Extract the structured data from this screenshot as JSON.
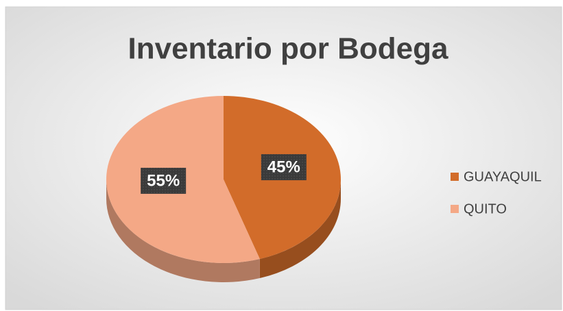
{
  "chart_data": {
    "type": "pie",
    "title": "Inventario por Bodega",
    "categories": [
      "GUAYAQUIL",
      "QUITO"
    ],
    "values": [
      45,
      55
    ],
    "value_labels": [
      "45%",
      "55%"
    ],
    "colors": [
      "#d26c2a",
      "#f4a886"
    ],
    "legend": "right"
  }
}
